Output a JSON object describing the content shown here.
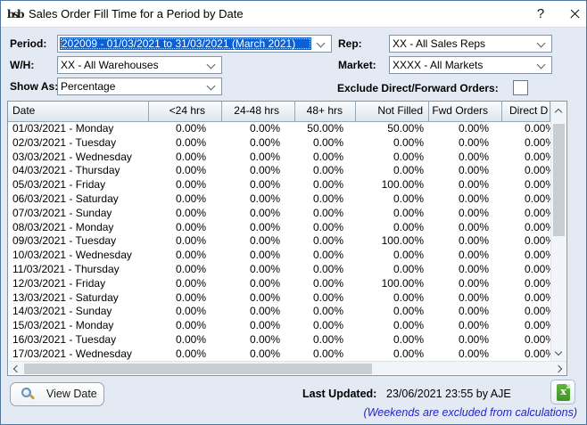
{
  "window": {
    "title": "Sales Order Fill Time for a Period by Date",
    "logo_text": "bsb",
    "help_label": "?"
  },
  "filters": {
    "period": {
      "label": "Period:",
      "value": "202009 - 01/03/2021 to 31/03/2021 (March 2021)"
    },
    "rep": {
      "label": "Rep:",
      "value": "XX - All Sales Reps"
    },
    "wh": {
      "label": "W/H:",
      "value": "XX - All Warehouses"
    },
    "market": {
      "label": "Market:",
      "value": "XXXX - All Markets"
    },
    "show_as": {
      "label": "Show As:",
      "value": "Percentage"
    },
    "exclude": {
      "label": "Exclude Direct/Forward Orders:",
      "checked": false
    }
  },
  "table": {
    "columns": [
      "Date",
      "<24 hrs",
      "24-48 hrs",
      "48+ hrs",
      "Not Filled",
      "Fwd Orders",
      "Direct D"
    ],
    "rows": [
      [
        "01/03/2021 - Monday",
        "0.00%",
        "0.00%",
        "50.00%",
        "50.00%",
        "0.00%",
        "0.00%"
      ],
      [
        "02/03/2021 - Tuesday",
        "0.00%",
        "0.00%",
        "0.00%",
        "0.00%",
        "0.00%",
        "0.00%"
      ],
      [
        "03/03/2021 - Wednesday",
        "0.00%",
        "0.00%",
        "0.00%",
        "0.00%",
        "0.00%",
        "0.00%"
      ],
      [
        "04/03/2021 - Thursday",
        "0.00%",
        "0.00%",
        "0.00%",
        "0.00%",
        "0.00%",
        "0.00%"
      ],
      [
        "05/03/2021 - Friday",
        "0.00%",
        "0.00%",
        "0.00%",
        "100.00%",
        "0.00%",
        "0.00%"
      ],
      [
        "06/03/2021 - Saturday",
        "0.00%",
        "0.00%",
        "0.00%",
        "0.00%",
        "0.00%",
        "0.00%"
      ],
      [
        "07/03/2021 - Sunday",
        "0.00%",
        "0.00%",
        "0.00%",
        "0.00%",
        "0.00%",
        "0.00%"
      ],
      [
        "08/03/2021 - Monday",
        "0.00%",
        "0.00%",
        "0.00%",
        "0.00%",
        "0.00%",
        "0.00%"
      ],
      [
        "09/03/2021 - Tuesday",
        "0.00%",
        "0.00%",
        "0.00%",
        "100.00%",
        "0.00%",
        "0.00%"
      ],
      [
        "10/03/2021 - Wednesday",
        "0.00%",
        "0.00%",
        "0.00%",
        "0.00%",
        "0.00%",
        "0.00%"
      ],
      [
        "11/03/2021 - Thursday",
        "0.00%",
        "0.00%",
        "0.00%",
        "0.00%",
        "0.00%",
        "0.00%"
      ],
      [
        "12/03/2021 - Friday",
        "0.00%",
        "0.00%",
        "0.00%",
        "100.00%",
        "0.00%",
        "0.00%"
      ],
      [
        "13/03/2021 - Saturday",
        "0.00%",
        "0.00%",
        "0.00%",
        "0.00%",
        "0.00%",
        "0.00%"
      ],
      [
        "14/03/2021 - Sunday",
        "0.00%",
        "0.00%",
        "0.00%",
        "0.00%",
        "0.00%",
        "0.00%"
      ],
      [
        "15/03/2021 - Monday",
        "0.00%",
        "0.00%",
        "0.00%",
        "0.00%",
        "0.00%",
        "0.00%"
      ],
      [
        "16/03/2021 - Tuesday",
        "0.00%",
        "0.00%",
        "0.00%",
        "0.00%",
        "0.00%",
        "0.00%"
      ],
      [
        "17/03/2021 - Wednesday",
        "0.00%",
        "0.00%",
        "0.00%",
        "0.00%",
        "0.00%",
        "0.00%"
      ]
    ]
  },
  "footer": {
    "view_date_label": "View Date",
    "last_updated_label": "Last Updated:",
    "last_updated_value": "23/06/2021 23:55 by AJE",
    "note": "(Weekends are excluded from calculations)"
  },
  "colors": {
    "selection_blue": "#0a5fd2",
    "dialog_bg": "#e4eaf4",
    "note_blue": "#2323c8",
    "excel_green": "#4ba02f"
  }
}
